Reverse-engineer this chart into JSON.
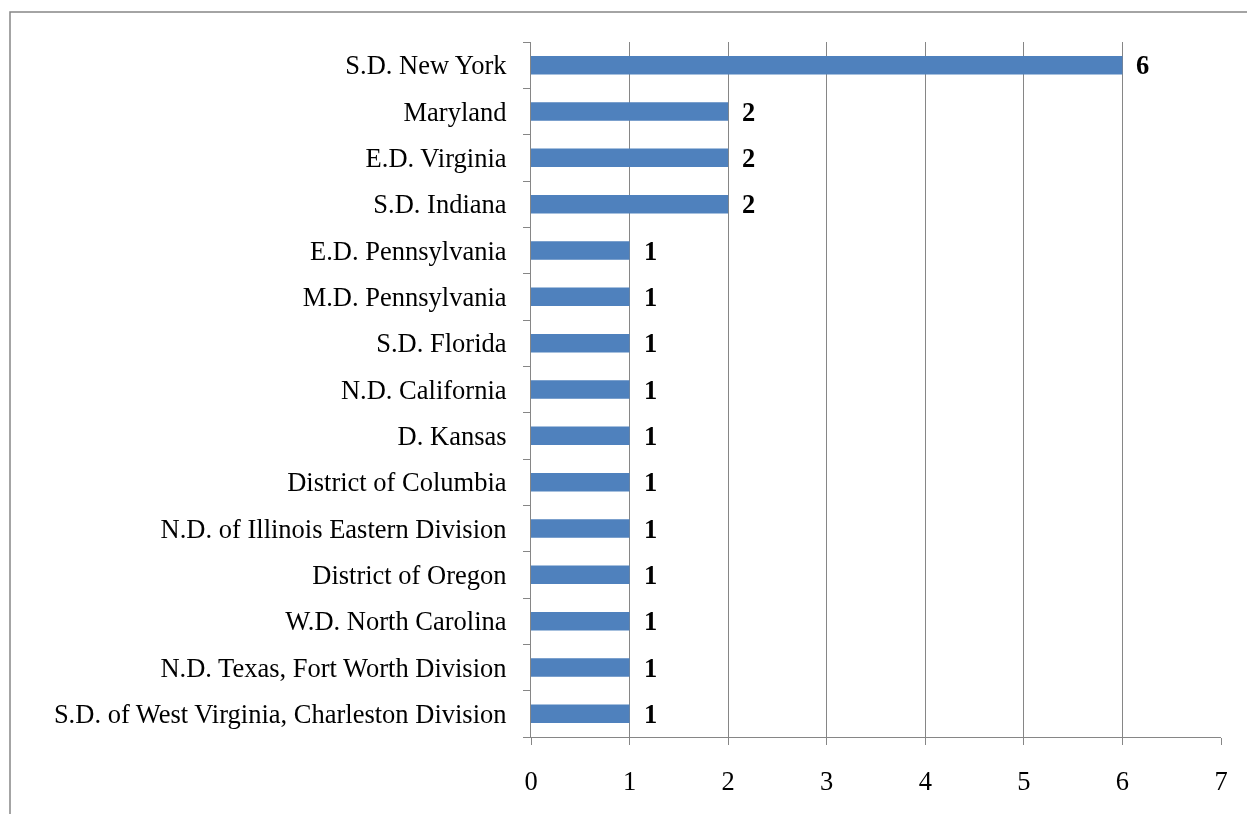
{
  "chart_data": {
    "type": "bar",
    "orientation": "horizontal",
    "categories": [
      "S.D. New York",
      "Maryland",
      "E.D. Virginia",
      "S.D. Indiana",
      "E.D. Pennsylvania",
      "M.D. Pennsylvania",
      "S.D. Florida",
      "N.D. California",
      "D. Kansas",
      "District of Columbia",
      "N.D. of Illinois Eastern Division",
      "District of Oregon",
      "W.D. North Carolina",
      "N.D. Texas, Fort Worth Division",
      "S.D. of West Virginia, Charleston Division"
    ],
    "values": [
      6,
      2,
      2,
      2,
      1,
      1,
      1,
      1,
      1,
      1,
      1,
      1,
      1,
      1,
      1
    ],
    "color": "#4f81bd",
    "xlim": [
      0,
      7
    ],
    "xticks": [
      0,
      1,
      2,
      3,
      4,
      5,
      6,
      7
    ],
    "grid": "x",
    "data_labels": true
  }
}
